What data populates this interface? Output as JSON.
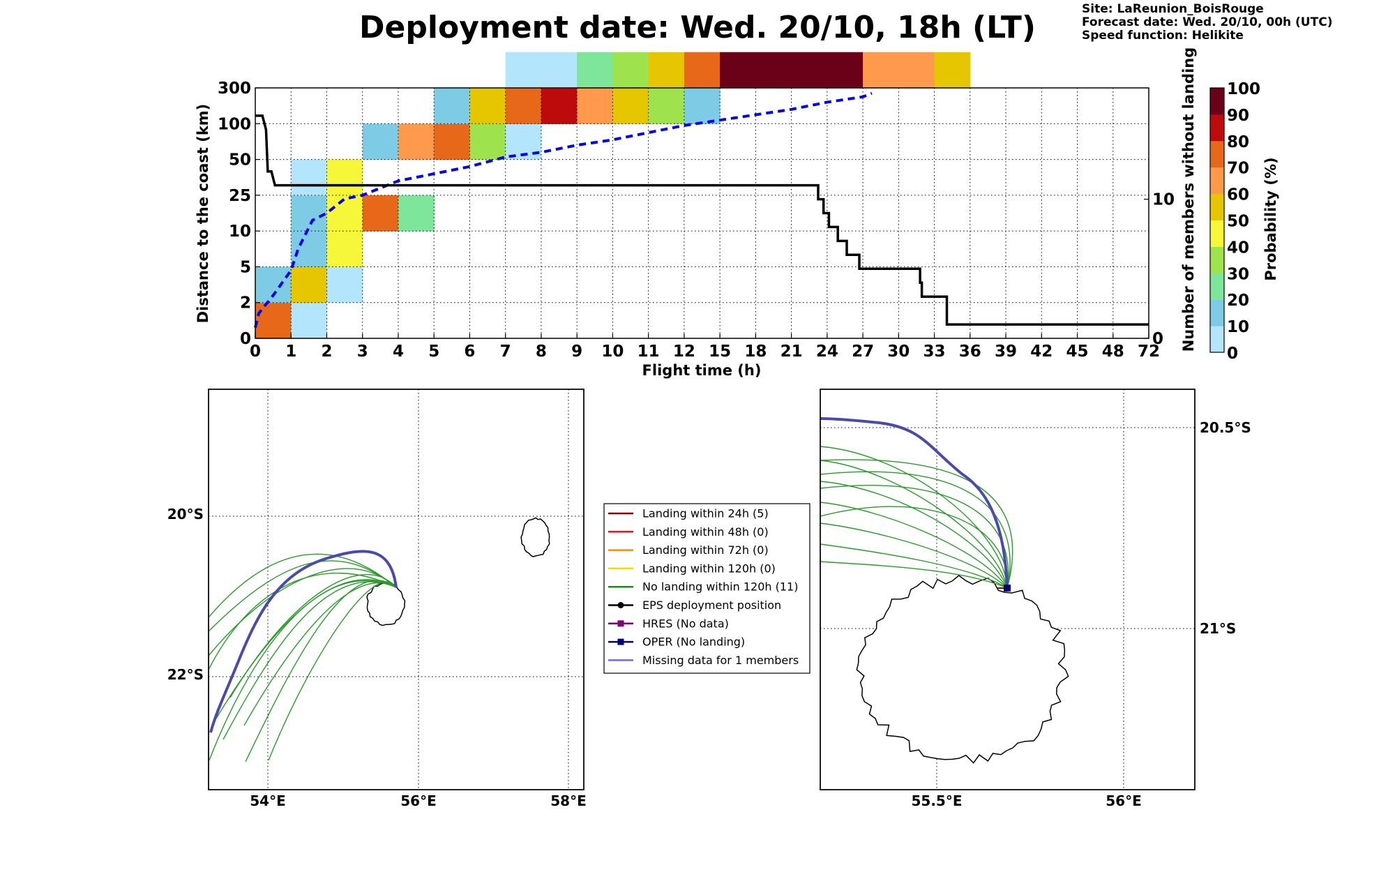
{
  "title": "Deployment date: Wed. 20/10, 18h (LT)",
  "meta": {
    "site": "Site: LaReunion_BoisRouge",
    "forecast": "Forecast date: Wed. 20/10, 00h (UTC)",
    "speed": "Speed function: Helikite"
  },
  "chart_data": [
    {
      "type": "heatmap",
      "xlabel": "Flight time (h)",
      "ylabel": "Distance to the coast (km)",
      "y2label": "Number of members without landing",
      "x_ticks": [
        "0",
        "1",
        "2",
        "3",
        "4",
        "5",
        "6",
        "7",
        "8",
        "9",
        "10",
        "11",
        "12",
        "15",
        "18",
        "21",
        "24",
        "27",
        "30",
        "33",
        "36",
        "39",
        "42",
        "45",
        "48",
        "72"
      ],
      "y_ticks": [
        "0",
        "2",
        "5",
        "10",
        "25",
        "50",
        "100",
        "300"
      ],
      "y2_ticks": [
        "0",
        "10"
      ],
      "y2_range": [
        0,
        18
      ],
      "colorbar": {
        "label": "Probability (%)",
        "ticks": [
          "0",
          "10",
          "20",
          "30",
          "40",
          "50",
          "60",
          "70",
          "80",
          "90",
          "100"
        ],
        "colors": [
          "#b3e5fc",
          "#7ecbe6",
          "#7ee69a",
          "#9ee24e",
          "#f7f739",
          "#e6c600",
          "#ff9a4d",
          "#e8681a",
          "#bd0a0a",
          "#6b0019"
        ]
      },
      "cells": [
        {
          "x": 0,
          "y": 0,
          "v": 7
        },
        {
          "x": 0,
          "y": 1,
          "v": 1
        },
        {
          "x": 1,
          "y": 0,
          "v": 0
        },
        {
          "x": 1,
          "y": 1,
          "v": 5
        },
        {
          "x": 1,
          "y": 2,
          "v": 1
        },
        {
          "x": 1,
          "y": 3,
          "v": 1
        },
        {
          "x": 1,
          "y": 4,
          "v": 0
        },
        {
          "x": 2,
          "y": 1,
          "v": 0
        },
        {
          "x": 2,
          "y": 2,
          "v": 4
        },
        {
          "x": 2,
          "y": 3,
          "v": 4
        },
        {
          "x": 2,
          "y": 4,
          "v": 4
        },
        {
          "x": 3,
          "y": 3,
          "v": 7
        },
        {
          "x": 3,
          "y": 5,
          "v": 1
        },
        {
          "x": 4,
          "y": 3,
          "v": 2
        },
        {
          "x": 4,
          "y": 5,
          "v": 6
        },
        {
          "x": 5,
          "y": 5,
          "v": 7
        },
        {
          "x": 5,
          "y": 6,
          "v": 1
        },
        {
          "x": 6,
          "y": 5,
          "v": 3
        },
        {
          "x": 6,
          "y": 6,
          "v": 5
        },
        {
          "x": 7,
          "y": 5,
          "v": 0
        },
        {
          "x": 7,
          "y": 6,
          "v": 7
        },
        {
          "x": 7,
          "y": 7,
          "v": 0
        },
        {
          "x": 8,
          "y": 6,
          "v": 8
        },
        {
          "x": 8,
          "y": 7,
          "v": 0
        },
        {
          "x": 9,
          "y": 6,
          "v": 6
        },
        {
          "x": 9,
          "y": 7,
          "v": 2
        },
        {
          "x": 10,
          "y": 6,
          "v": 5
        },
        {
          "x": 10,
          "y": 7,
          "v": 3
        },
        {
          "x": 11,
          "y": 6,
          "v": 3
        },
        {
          "x": 11,
          "y": 7,
          "v": 5
        },
        {
          "x": 12,
          "y": 6,
          "v": 1
        },
        {
          "x": 12,
          "y": 7,
          "v": 7
        },
        {
          "x": 13,
          "y": 7,
          "v": 9
        },
        {
          "x": 14,
          "y": 7,
          "v": 9
        },
        {
          "x": 15,
          "y": 7,
          "v": 9
        },
        {
          "x": 16,
          "y": 7,
          "v": 9
        },
        {
          "x": 17,
          "y": 7,
          "v": 6
        },
        {
          "x": 18,
          "y": 7,
          "v": 6
        },
        {
          "x": 19,
          "y": 7,
          "v": 5
        }
      ],
      "series": [
        {
          "y_axis": "left",
          "style": "dashed",
          "color": "#0000ee",
          "points": [
            [
              0,
              0.3
            ],
            [
              0.1,
              0.7
            ],
            [
              0.5,
              1.2
            ],
            [
              1,
              1.9
            ],
            [
              1.2,
              2.5
            ],
            [
              1.6,
              3.3
            ],
            [
              2,
              3.5
            ],
            [
              2.5,
              3.9
            ],
            [
              3,
              4.0
            ],
            [
              3.5,
              4.2
            ],
            [
              4,
              4.4
            ],
            [
              5,
              4.6
            ],
            [
              6,
              4.8
            ],
            [
              7,
              5.07
            ],
            [
              8,
              5.2
            ],
            [
              9,
              5.4
            ],
            [
              10,
              5.55
            ],
            [
              11,
              5.75
            ],
            [
              12,
              5.95
            ],
            [
              13,
              6.1
            ],
            [
              14,
              6.25
            ],
            [
              15,
              6.4
            ],
            [
              16,
              6.6
            ],
            [
              17,
              6.75
            ],
            [
              17.25,
              6.85
            ]
          ]
        },
        {
          "y_axis": "right",
          "style": "solid",
          "color": "#000000",
          "points": [
            [
              0,
              16
            ],
            [
              0.2,
              16
            ],
            [
              0.3,
              15
            ],
            [
              0.35,
              12
            ],
            [
              0.45,
              12
            ],
            [
              0.55,
              11
            ],
            [
              15.75,
              11
            ],
            [
              15.75,
              10
            ],
            [
              15.9,
              10
            ],
            [
              15.9,
              9
            ],
            [
              16.05,
              9
            ],
            [
              16.05,
              8
            ],
            [
              16.3,
              8
            ],
            [
              16.3,
              7
            ],
            [
              16.55,
              7
            ],
            [
              16.55,
              6
            ],
            [
              16.9,
              6
            ],
            [
              16.9,
              5
            ],
            [
              18.6,
              5
            ],
            [
              18.6,
              4
            ],
            [
              18.65,
              4
            ],
            [
              18.65,
              3
            ],
            [
              19.35,
              3
            ],
            [
              19.35,
              1
            ],
            [
              25,
              1
            ]
          ]
        }
      ]
    }
  ],
  "maps": {
    "left": {
      "x_ticks": [
        "54°E",
        "56°E",
        "58°E"
      ],
      "y_ticks": [
        "20°S",
        "22°S"
      ]
    },
    "right": {
      "x_ticks": [
        "55.5°E",
        "56°E"
      ],
      "y_ticks": [
        "20.5°S",
        "21°S"
      ]
    }
  },
  "legend": [
    {
      "label": "Landing within 24h (5)",
      "color": "#8b0000",
      "marker": "none"
    },
    {
      "label": "Landing within 48h (0)",
      "color": "#ee1111",
      "marker": "none"
    },
    {
      "label": "Landing within 72h (0)",
      "color": "#ff8c00",
      "marker": "none"
    },
    {
      "label": "Landing within 120h (0)",
      "color": "#ffd700",
      "marker": "none"
    },
    {
      "label": "No landing within 120h (11)",
      "color": "#1a8a1a",
      "marker": "none"
    },
    {
      "label": "EPS deployment position",
      "color": "#000000",
      "marker": "circle"
    },
    {
      "label": "HRES (No data)",
      "color": "#800080",
      "marker": "square"
    },
    {
      "label": "OPER (No landing)",
      "color": "#00007a",
      "marker": "square"
    },
    {
      "label": "Missing data for 1 members",
      "color": "#6a6aff",
      "marker": "none"
    }
  ]
}
